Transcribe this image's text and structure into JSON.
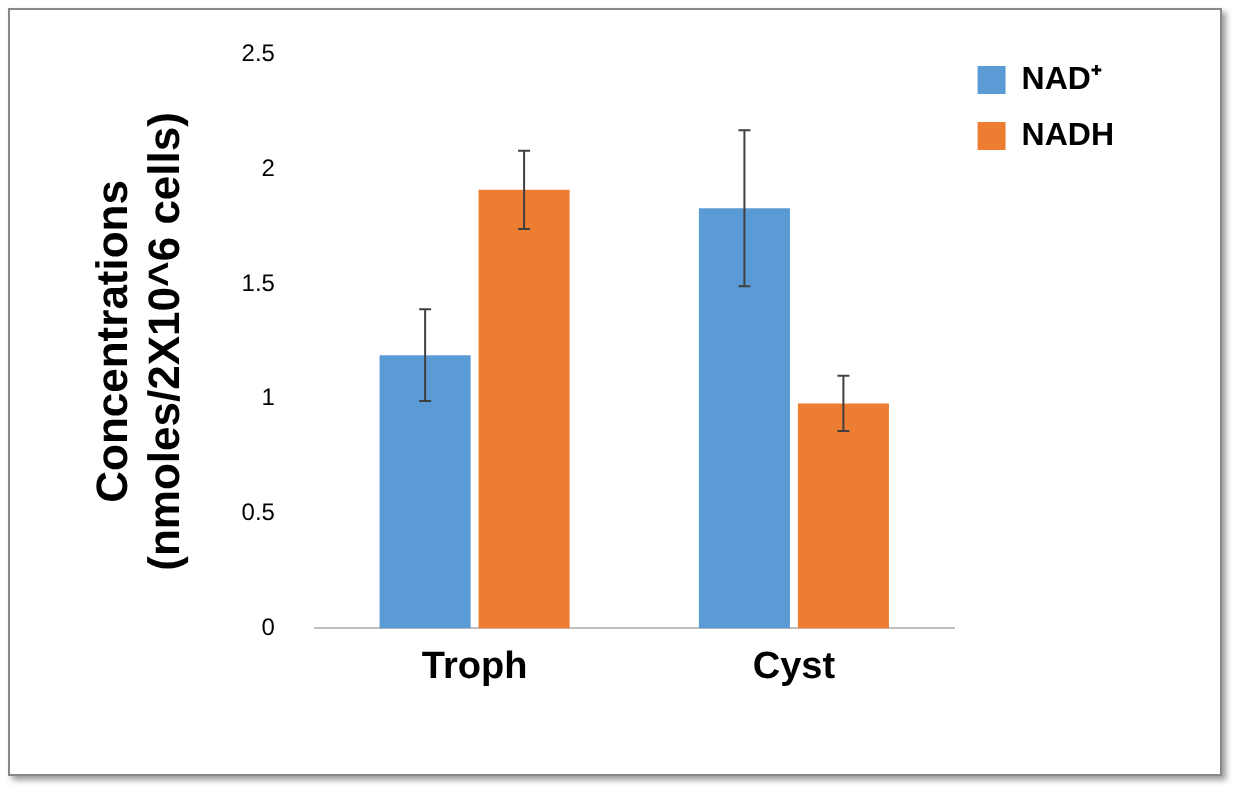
{
  "chart_data": {
    "type": "bar",
    "ylabel": "Concentrations\n(nmoles/2X10^6 cells)",
    "categories": [
      "Troph",
      "Cyst"
    ],
    "series": [
      {
        "name": "NAD⁺",
        "color": "#5b9bd5",
        "values": [
          1.19,
          1.83
        ],
        "errors": [
          0.2,
          0.34
        ]
      },
      {
        "name": "NADH",
        "color": "#ed7d31",
        "values": [
          1.91,
          0.98
        ],
        "errors": [
          0.17,
          0.12
        ]
      }
    ],
    "ylim": [
      0,
      2.5
    ],
    "yticks": [
      0,
      0.5,
      1,
      1.5,
      2,
      2.5
    ],
    "grid": false,
    "legend": "top right"
  }
}
